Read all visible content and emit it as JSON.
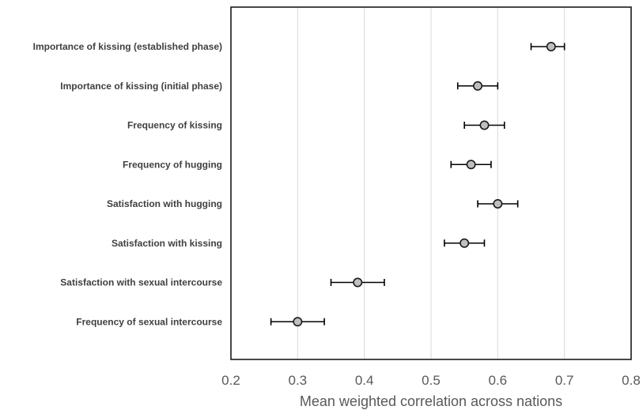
{
  "chart_data": {
    "type": "scatter",
    "title": "",
    "xlabel": "Mean weighted correlation across nations",
    "ylabel": "",
    "xlim": [
      0.2,
      0.8
    ],
    "xticks": [
      "0.2",
      "0.3",
      "0.4",
      "0.5",
      "0.6",
      "0.7",
      "0.8"
    ],
    "grid": "vertical",
    "categories": [
      "Importance of kissing (established phase)",
      "Importance of kissing (initial phase)",
      "Frequency of kissing",
      "Frequency of hugging",
      "Satisfaction with hugging",
      "Satisfaction with kissing",
      "Satisfaction with sexual intercourse",
      "Frequency of sexual intercourse"
    ],
    "values": [
      0.68,
      0.57,
      0.58,
      0.56,
      0.6,
      0.55,
      0.39,
      0.3
    ],
    "ci_low": [
      0.65,
      0.54,
      0.55,
      0.53,
      0.57,
      0.52,
      0.35,
      0.26
    ],
    "ci_high": [
      0.7,
      0.6,
      0.61,
      0.59,
      0.63,
      0.58,
      0.43,
      0.34
    ],
    "colors": {
      "marker_fill": "#bfbfbf",
      "marker_stroke": "#1a1a1a",
      "grid": "#d9d9d9"
    }
  }
}
